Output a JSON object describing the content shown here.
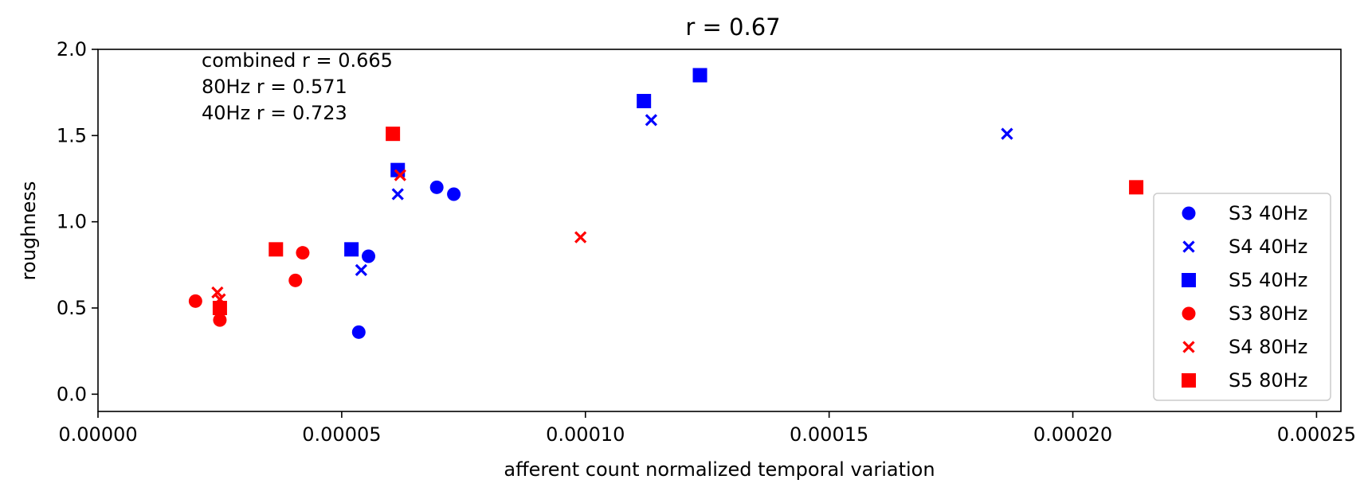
{
  "chart_data": {
    "type": "scatter",
    "title": "r = 0.67",
    "xlabel": "afferent count normalized temporal variation",
    "ylabel": "roughness",
    "xlim": [
      0.0,
      0.000255
    ],
    "ylim": [
      -0.1,
      2.0
    ],
    "xticks": [
      0.0,
      5e-05,
      0.0001,
      0.00015,
      0.0002,
      0.00025
    ],
    "xtick_labels": [
      "0.00000",
      "0.00005",
      "0.00010",
      "0.00015",
      "0.00020",
      "0.00025"
    ],
    "yticks": [
      0.0,
      0.5,
      1.0,
      1.5,
      2.0
    ],
    "ytick_labels": [
      "0.0",
      "0.5",
      "1.0",
      "1.5",
      "2.0"
    ],
    "grid": false,
    "legend_position": "lower-right",
    "annotations": [
      "combined r = 0.665",
      "80Hz r = 0.571",
      "40Hz r = 0.723"
    ],
    "series": [
      {
        "name": "S3 40Hz",
        "color": "#0000ff",
        "marker": "circle",
        "points": [
          [
            5.35e-05,
            0.36
          ],
          [
            5.55e-05,
            0.8
          ],
          [
            6.95e-05,
            1.2
          ],
          [
            7.3e-05,
            1.16
          ]
        ]
      },
      {
        "name": "S4 40Hz",
        "color": "#0000ff",
        "marker": "x",
        "points": [
          [
            5.4e-05,
            0.72
          ],
          [
            6.15e-05,
            1.16
          ],
          [
            0.0001135,
            1.59
          ],
          [
            0.0001865,
            1.51
          ]
        ]
      },
      {
        "name": "S5 40Hz",
        "color": "#0000ff",
        "marker": "square",
        "points": [
          [
            5.2e-05,
            0.84
          ],
          [
            6.15e-05,
            1.3
          ],
          [
            0.000112,
            1.7
          ],
          [
            0.0001235,
            1.85
          ]
        ]
      },
      {
        "name": "S3 80Hz",
        "color": "#ff0000",
        "marker": "circle",
        "points": [
          [
            2e-05,
            0.54
          ],
          [
            2.5e-05,
            0.43
          ],
          [
            4.05e-05,
            0.66
          ],
          [
            4.2e-05,
            0.82
          ]
        ]
      },
      {
        "name": "S4 80Hz",
        "color": "#ff0000",
        "marker": "x",
        "points": [
          [
            2.45e-05,
            0.59
          ],
          [
            2.5e-05,
            0.55
          ],
          [
            6.2e-05,
            1.27
          ],
          [
            9.9e-05,
            0.91
          ]
        ]
      },
      {
        "name": "S5 80Hz",
        "color": "#ff0000",
        "marker": "square",
        "points": [
          [
            2.5e-05,
            0.5
          ],
          [
            3.65e-05,
            0.84
          ],
          [
            6.05e-05,
            1.51
          ],
          [
            0.000213,
            1.2
          ]
        ]
      }
    ]
  }
}
